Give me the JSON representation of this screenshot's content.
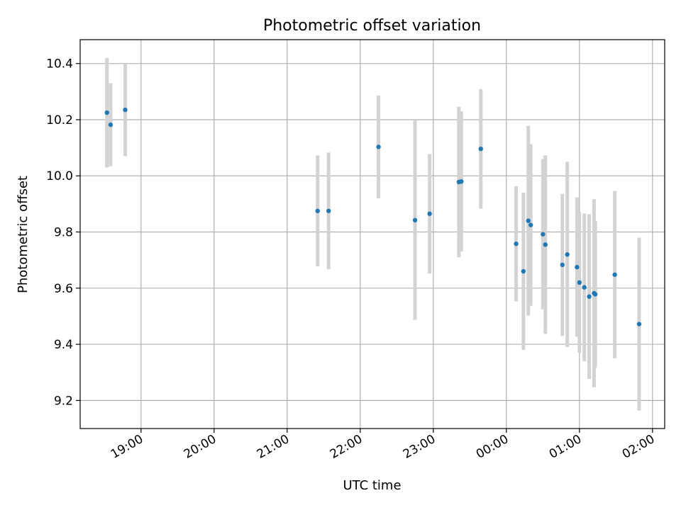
{
  "chart_data": {
    "type": "scatter",
    "title": "Photometric offset variation",
    "xlabel": "UTC time",
    "ylabel": "Photometric offset",
    "x_axis_type": "time",
    "x_date_start": "18:10",
    "xlim": [
      "18:10",
      "02:10"
    ],
    "ylim": [
      9.1,
      10.485
    ],
    "x_tick_labels": [
      "19:00",
      "20:00",
      "21:00",
      "22:00",
      "23:00",
      "00:00",
      "01:00",
      "02:00"
    ],
    "y_tick_labels": [
      "9.2",
      "9.4",
      "9.6",
      "9.8",
      "10.0",
      "10.2",
      "10.4"
    ],
    "grid": true,
    "points": [
      {
        "x": "18:32",
        "y": 10.225,
        "err": 0.195
      },
      {
        "x": "18:35",
        "y": 10.182,
        "err": 0.148
      },
      {
        "x": "18:47",
        "y": 10.235,
        "err": 0.165
      },
      {
        "x": "21:25",
        "y": 9.875,
        "err": 0.198
      },
      {
        "x": "21:34",
        "y": 9.875,
        "err": 0.208
      },
      {
        "x": "22:15",
        "y": 10.103,
        "err": 0.183
      },
      {
        "x": "22:45",
        "y": 9.842,
        "err": 0.355
      },
      {
        "x": "22:57",
        "y": 9.865,
        "err": 0.213
      },
      {
        "x": "23:21",
        "y": 9.978,
        "err": 0.268
      },
      {
        "x": "23:23",
        "y": 9.98,
        "err": 0.25
      },
      {
        "x": "23:39",
        "y": 10.096,
        "err": 0.213
      },
      {
        "x": "00:08",
        "y": 9.758,
        "err": 0.205
      },
      {
        "x": "00:14",
        "y": 9.66,
        "err": 0.28
      },
      {
        "x": "00:18",
        "y": 9.84,
        "err": 0.338
      },
      {
        "x": "00:20",
        "y": 9.825,
        "err": 0.288
      },
      {
        "x": "00:30",
        "y": 9.792,
        "err": 0.268
      },
      {
        "x": "00:32",
        "y": 9.755,
        "err": 0.318
      },
      {
        "x": "00:46",
        "y": 9.683,
        "err": 0.253
      },
      {
        "x": "00:50",
        "y": 9.72,
        "err": 0.33
      },
      {
        "x": "00:58",
        "y": 9.675,
        "err": 0.248
      },
      {
        "x": "01:00",
        "y": 9.62,
        "err": 0.25
      },
      {
        "x": "01:04",
        "y": 9.603,
        "err": 0.263
      },
      {
        "x": "01:08",
        "y": 9.57,
        "err": 0.293
      },
      {
        "x": "01:12",
        "y": 9.582,
        "err": 0.335
      },
      {
        "x": "01:13",
        "y": 9.578,
        "err": 0.262
      },
      {
        "x": "01:29",
        "y": 9.648,
        "err": 0.298
      },
      {
        "x": "01:49",
        "y": 9.472,
        "err": 0.308
      }
    ],
    "marker_color": "#1f77b4",
    "errorbar_color": "#d3d3d3",
    "grid_color": "#b0b0b0"
  }
}
